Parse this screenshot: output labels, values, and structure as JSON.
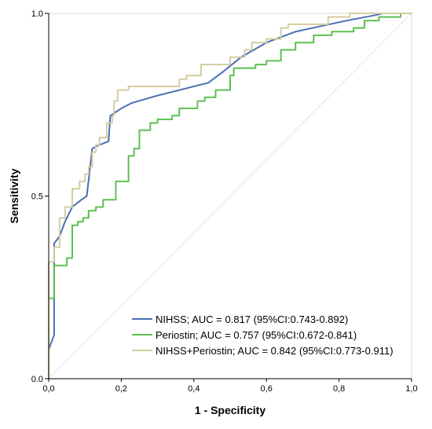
{
  "chart_data": {
    "type": "line",
    "title": "",
    "xlabel": "1 - Specificity",
    "ylabel": "Sensitivity",
    "xlim": [
      0,
      1
    ],
    "ylim": [
      0,
      1
    ],
    "x_ticks": [
      "0,0",
      "0,2",
      "0,4",
      "0,6",
      "0,8",
      "1,0"
    ],
    "y_ticks": [
      "0.0",
      "0.5",
      "1.0"
    ],
    "grid": false,
    "legend_position": "bottom-right",
    "reference_line": true,
    "series": [
      {
        "name": "NIHSS; AUC = 0.817 (95%CI:0.743-0.892)",
        "color": "#4a6fb5",
        "points": [
          [
            0,
            0
          ],
          [
            0,
            0.08
          ],
          [
            0.015,
            0.12
          ],
          [
            0.015,
            0.37
          ],
          [
            0.03,
            0.39
          ],
          [
            0.045,
            0.43
          ],
          [
            0.065,
            0.47
          ],
          [
            0.09,
            0.49
          ],
          [
            0.105,
            0.5
          ],
          [
            0.12,
            0.63
          ],
          [
            0.14,
            0.64
          ],
          [
            0.165,
            0.65
          ],
          [
            0.17,
            0.72
          ],
          [
            0.2,
            0.74
          ],
          [
            0.23,
            0.755
          ],
          [
            0.3,
            0.775
          ],
          [
            0.38,
            0.795
          ],
          [
            0.44,
            0.81
          ],
          [
            0.48,
            0.84
          ],
          [
            0.53,
            0.88
          ],
          [
            0.6,
            0.92
          ],
          [
            0.68,
            0.95
          ],
          [
            0.75,
            0.965
          ],
          [
            0.82,
            0.98
          ],
          [
            0.9,
            0.995
          ],
          [
            0.92,
            1.0
          ],
          [
            1.0,
            1.0
          ]
        ]
      },
      {
        "name": "Periostin; AUC = 0.757 (95%CI:0.672-0.841)",
        "color": "#5cc050",
        "points": [
          [
            0,
            0
          ],
          [
            0,
            0.22
          ],
          [
            0.015,
            0.22
          ],
          [
            0.015,
            0.31
          ],
          [
            0.05,
            0.31
          ],
          [
            0.05,
            0.33
          ],
          [
            0.065,
            0.33
          ],
          [
            0.065,
            0.42
          ],
          [
            0.08,
            0.42
          ],
          [
            0.08,
            0.43
          ],
          [
            0.095,
            0.43
          ],
          [
            0.095,
            0.44
          ],
          [
            0.11,
            0.44
          ],
          [
            0.11,
            0.46
          ],
          [
            0.13,
            0.46
          ],
          [
            0.13,
            0.47
          ],
          [
            0.15,
            0.47
          ],
          [
            0.15,
            0.49
          ],
          [
            0.185,
            0.49
          ],
          [
            0.185,
            0.54
          ],
          [
            0.22,
            0.54
          ],
          [
            0.22,
            0.61
          ],
          [
            0.235,
            0.61
          ],
          [
            0.235,
            0.63
          ],
          [
            0.25,
            0.63
          ],
          [
            0.25,
            0.68
          ],
          [
            0.28,
            0.68
          ],
          [
            0.28,
            0.7
          ],
          [
            0.3,
            0.7
          ],
          [
            0.3,
            0.71
          ],
          [
            0.34,
            0.71
          ],
          [
            0.34,
            0.72
          ],
          [
            0.36,
            0.72
          ],
          [
            0.36,
            0.74
          ],
          [
            0.41,
            0.74
          ],
          [
            0.41,
            0.76
          ],
          [
            0.43,
            0.76
          ],
          [
            0.43,
            0.77
          ],
          [
            0.46,
            0.77
          ],
          [
            0.46,
            0.79
          ],
          [
            0.5,
            0.79
          ],
          [
            0.5,
            0.83
          ],
          [
            0.51,
            0.83
          ],
          [
            0.51,
            0.85
          ],
          [
            0.57,
            0.85
          ],
          [
            0.57,
            0.86
          ],
          [
            0.6,
            0.86
          ],
          [
            0.6,
            0.87
          ],
          [
            0.64,
            0.87
          ],
          [
            0.64,
            0.9
          ],
          [
            0.68,
            0.9
          ],
          [
            0.68,
            0.92
          ],
          [
            0.73,
            0.92
          ],
          [
            0.73,
            0.94
          ],
          [
            0.78,
            0.94
          ],
          [
            0.78,
            0.95
          ],
          [
            0.84,
            0.95
          ],
          [
            0.84,
            0.96
          ],
          [
            0.87,
            0.96
          ],
          [
            0.87,
            0.98
          ],
          [
            0.91,
            0.98
          ],
          [
            0.91,
            0.99
          ],
          [
            0.97,
            0.99
          ],
          [
            0.97,
            1.0
          ],
          [
            1.0,
            1.0
          ]
        ]
      },
      {
        "name": "NIHSS+Periostin; AUC = 0.842 (95%CI:0.773-0.911)",
        "color": "#d4cda0",
        "points": [
          [
            0,
            0
          ],
          [
            0,
            0.32
          ],
          [
            0.015,
            0.32
          ],
          [
            0.015,
            0.36
          ],
          [
            0.03,
            0.36
          ],
          [
            0.03,
            0.44
          ],
          [
            0.045,
            0.44
          ],
          [
            0.045,
            0.47
          ],
          [
            0.065,
            0.47
          ],
          [
            0.065,
            0.52
          ],
          [
            0.085,
            0.52
          ],
          [
            0.085,
            0.54
          ],
          [
            0.1,
            0.54
          ],
          [
            0.1,
            0.56
          ],
          [
            0.11,
            0.56
          ],
          [
            0.11,
            0.58
          ],
          [
            0.12,
            0.58
          ],
          [
            0.12,
            0.62
          ],
          [
            0.13,
            0.62
          ],
          [
            0.13,
            0.64
          ],
          [
            0.14,
            0.64
          ],
          [
            0.14,
            0.66
          ],
          [
            0.16,
            0.66
          ],
          [
            0.16,
            0.7
          ],
          [
            0.175,
            0.7
          ],
          [
            0.175,
            0.72
          ],
          [
            0.18,
            0.72
          ],
          [
            0.18,
            0.76
          ],
          [
            0.19,
            0.76
          ],
          [
            0.19,
            0.79
          ],
          [
            0.22,
            0.79
          ],
          [
            0.22,
            0.8
          ],
          [
            0.36,
            0.8
          ],
          [
            0.36,
            0.82
          ],
          [
            0.38,
            0.82
          ],
          [
            0.38,
            0.83
          ],
          [
            0.42,
            0.83
          ],
          [
            0.42,
            0.86
          ],
          [
            0.5,
            0.86
          ],
          [
            0.5,
            0.88
          ],
          [
            0.54,
            0.88
          ],
          [
            0.54,
            0.9
          ],
          [
            0.56,
            0.9
          ],
          [
            0.56,
            0.92
          ],
          [
            0.6,
            0.92
          ],
          [
            0.6,
            0.93
          ],
          [
            0.64,
            0.93
          ],
          [
            0.64,
            0.96
          ],
          [
            0.66,
            0.96
          ],
          [
            0.66,
            0.97
          ],
          [
            0.77,
            0.97
          ],
          [
            0.77,
            0.99
          ],
          [
            0.83,
            0.99
          ],
          [
            0.83,
            1.0
          ],
          [
            1.0,
            1.0
          ]
        ]
      }
    ]
  }
}
